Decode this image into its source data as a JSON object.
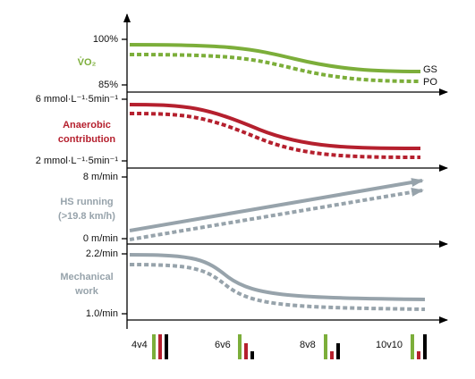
{
  "panels": [
    {
      "label": [
        "V̇O₂"
      ],
      "top_tick": "100%",
      "bottom_tick": "85%",
      "series_labels": [
        "GS",
        "PO"
      ]
    },
    {
      "label": [
        "Anaerobic",
        "contribution"
      ],
      "top_tick": "6 mmol·L⁻¹·5min⁻¹",
      "bottom_tick": "2 mmol·L⁻¹·5min⁻¹"
    },
    {
      "label": [
        "HS running",
        "(>19.8 km/h)"
      ],
      "top_tick": "8 m/min",
      "bottom_tick": "0 m/min"
    },
    {
      "label": [
        "Mechanical",
        "work"
      ],
      "top_tick": "2.2/min",
      "bottom_tick": "1.0/min"
    }
  ],
  "formats": [
    "4v4",
    "6v6",
    "8v8",
    "10v10"
  ]
}
